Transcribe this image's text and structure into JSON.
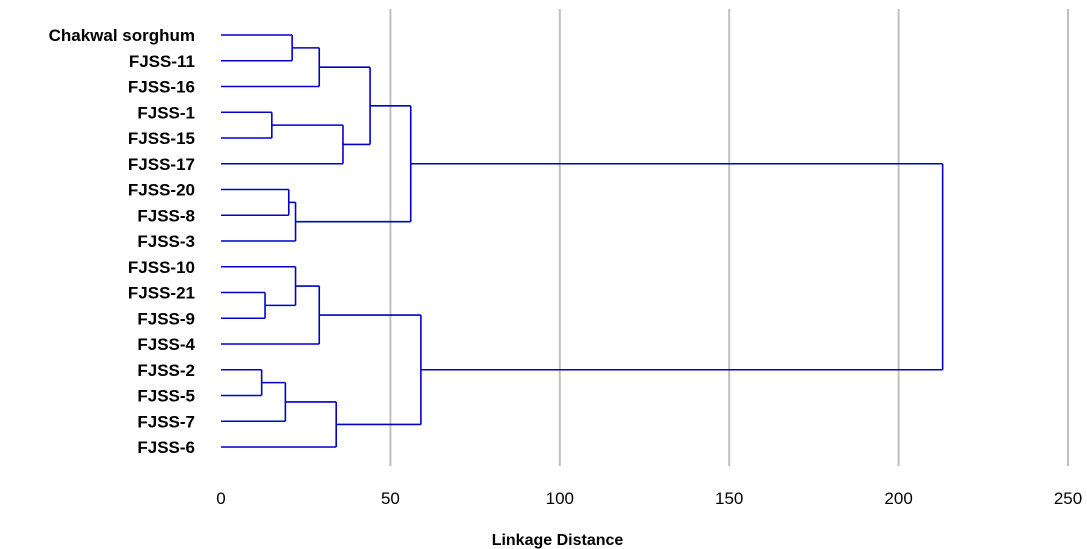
{
  "chart_data": {
    "type": "dendrogram",
    "orientation": "horizontal",
    "xlabel": "Linkage Distance",
    "xlim": [
      0,
      250
    ],
    "xticks": [
      0,
      50,
      100,
      150,
      200,
      250
    ],
    "grid": "vertical",
    "colors": {
      "link": "#0000cc",
      "grid": "#c0c0c0",
      "text": "#000000"
    },
    "leaves": [
      "Chakwal sorghum",
      "FJSS-11",
      "FJSS-16",
      "FJSS-1",
      "FJSS-15",
      "FJSS-17",
      "FJSS-20",
      "FJSS-8",
      "FJSS-3",
      "FJSS-10",
      "FJSS-21",
      "FJSS-9",
      "FJSS-4",
      "FJSS-2",
      "FJSS-5",
      "FJSS-7",
      "FJSS-6"
    ],
    "merges": [
      {
        "id": "c1",
        "children": [
          "Chakwal sorghum",
          "FJSS-11"
        ],
        "height": 21
      },
      {
        "id": "c2",
        "children": [
          "c1",
          "FJSS-16"
        ],
        "height": 29
      },
      {
        "id": "c3",
        "children": [
          "FJSS-1",
          "FJSS-15"
        ],
        "height": 15
      },
      {
        "id": "c4",
        "children": [
          "c3",
          "FJSS-17"
        ],
        "height": 36
      },
      {
        "id": "c5",
        "children": [
          "c2",
          "c4"
        ],
        "height": 44
      },
      {
        "id": "c6",
        "children": [
          "FJSS-20",
          "FJSS-8"
        ],
        "height": 20
      },
      {
        "id": "c7",
        "children": [
          "c6",
          "FJSS-3"
        ],
        "height": 22
      },
      {
        "id": "c8",
        "children": [
          "c5",
          "c7"
        ],
        "height": 56
      },
      {
        "id": "c9",
        "children": [
          "FJSS-21",
          "FJSS-9"
        ],
        "height": 13
      },
      {
        "id": "c10",
        "children": [
          "FJSS-10",
          "c9"
        ],
        "height": 22
      },
      {
        "id": "c11",
        "children": [
          "c10",
          "FJSS-4"
        ],
        "height": 29
      },
      {
        "id": "c12",
        "children": [
          "FJSS-2",
          "FJSS-5"
        ],
        "height": 12
      },
      {
        "id": "c13",
        "children": [
          "c12",
          "FJSS-7"
        ],
        "height": 19
      },
      {
        "id": "c14",
        "children": [
          "c13",
          "FJSS-6"
        ],
        "height": 34
      },
      {
        "id": "c15",
        "children": [
          "c11",
          "c14"
        ],
        "height": 59
      },
      {
        "id": "c16",
        "children": [
          "c8",
          "c15"
        ],
        "height": 213
      }
    ]
  }
}
